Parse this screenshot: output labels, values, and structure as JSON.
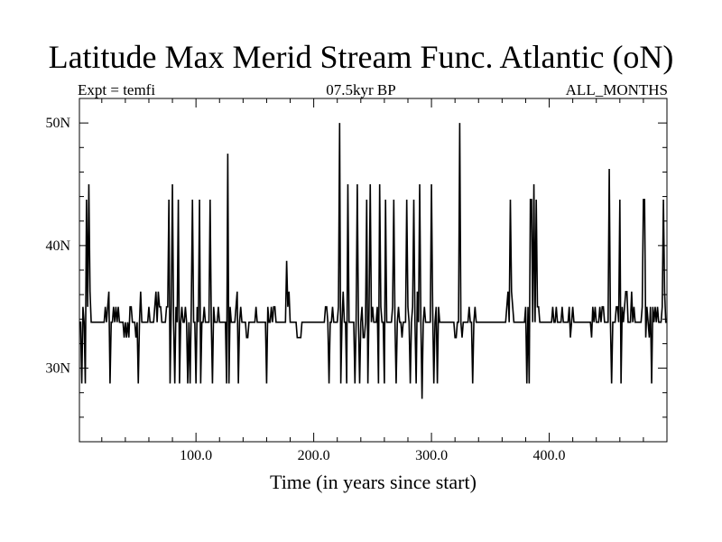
{
  "chart_data": {
    "type": "line",
    "title": "Latitude Max Merid Stream Func. Atlantic (oN)",
    "subtitle_left": "Expt = temfi",
    "subtitle_center": "07.5kyr BP",
    "subtitle_right": "ALL_MONTHS",
    "xlabel": "Time (in years since start)",
    "ylabel": "",
    "xlim": [
      1,
      500
    ],
    "ylim": [
      24,
      52
    ],
    "x_ticks": [
      100,
      200,
      300,
      400
    ],
    "x_tick_labels": [
      "100.0",
      "200.0",
      "300.0",
      "400.0"
    ],
    "y_ticks": [
      30,
      40,
      50
    ],
    "y_tick_labels": [
      "30N",
      "40N",
      "50N"
    ],
    "baseline": 33.75,
    "grid": false,
    "legend": "none",
    "series": [
      {
        "color": "#000000",
        "x": [
          1,
          2,
          3,
          4,
          5,
          6,
          7,
          8,
          9,
          10,
          11,
          12,
          13,
          14,
          15,
          16,
          17,
          18,
          19,
          20,
          21,
          22,
          23,
          24,
          25,
          26,
          27,
          28,
          29,
          30,
          31,
          32,
          33,
          34,
          35,
          36,
          37,
          38,
          39,
          40,
          41,
          42,
          43,
          44,
          45,
          46,
          47,
          48,
          49,
          50,
          51,
          52,
          53,
          54,
          55,
          56,
          57,
          58,
          59,
          60,
          61,
          62,
          63,
          64,
          65,
          66,
          67,
          68,
          69,
          70,
          71,
          72,
          73,
          74,
          75,
          76,
          77,
          78,
          79,
          80,
          81,
          82,
          83,
          84,
          85,
          86,
          87,
          88,
          89,
          90,
          91,
          92,
          93,
          94,
          95,
          96,
          97,
          98,
          99,
          100,
          101,
          102,
          103,
          104,
          105,
          106,
          107,
          108,
          109,
          110,
          111,
          112,
          113,
          114,
          115,
          116,
          117,
          118,
          119,
          120,
          121,
          122,
          123,
          124,
          125,
          126,
          127,
          128,
          129,
          130,
          131,
          132,
          133,
          134,
          135,
          136,
          137,
          138,
          139,
          140,
          141,
          142,
          143,
          144,
          145,
          146,
          147,
          148,
          149,
          150,
          151,
          152,
          153,
          154,
          155,
          156,
          157,
          158,
          159,
          160,
          161,
          162,
          163,
          164,
          165,
          166,
          167,
          168,
          169,
          170,
          171,
          172,
          173,
          174,
          175,
          176,
          177,
          178,
          179,
          180,
          181,
          182,
          183,
          184,
          185,
          186,
          187,
          188,
          189,
          190,
          191,
          192,
          193,
          194,
          195,
          196,
          197,
          198,
          199,
          200,
          201,
          202,
          203,
          204,
          205,
          206,
          207,
          208,
          209,
          210,
          211,
          212,
          213,
          214,
          215,
          216,
          217,
          218,
          219,
          220,
          221,
          222,
          223,
          224,
          225,
          226,
          227,
          228,
          229,
          230,
          231,
          232,
          233,
          234,
          235,
          236,
          237,
          238,
          239,
          240,
          241,
          242,
          243,
          244,
          245,
          246,
          247,
          248,
          249,
          250,
          251,
          252,
          253,
          254,
          255,
          256,
          257,
          258,
          259,
          260,
          261,
          262,
          263,
          264,
          265,
          266,
          267,
          268,
          269,
          270,
          271,
          272,
          273,
          274,
          275,
          276,
          277,
          278,
          279,
          280,
          281,
          282,
          283,
          284,
          285,
          286,
          287,
          288,
          289,
          290,
          291,
          292,
          293,
          294,
          295,
          296,
          297,
          298,
          299,
          300,
          301,
          302,
          303,
          304,
          305,
          306,
          307,
          308,
          309,
          310,
          311,
          312,
          313,
          314,
          315,
          316,
          317,
          318,
          319,
          320,
          321,
          322,
          323,
          324,
          325,
          326,
          327,
          328,
          329,
          330,
          331,
          332,
          333,
          334,
          335,
          336,
          337,
          338,
          339,
          340,
          341,
          342,
          343,
          344,
          345,
          346,
          347,
          348,
          349,
          350,
          351,
          352,
          353,
          354,
          355,
          356,
          357,
          358,
          359,
          360,
          361,
          362,
          363,
          364,
          365,
          366,
          367,
          368,
          369,
          370,
          371,
          372,
          373,
          374,
          375,
          376,
          377,
          378,
          379,
          380,
          381,
          382,
          383,
          384,
          385,
          386,
          387,
          388,
          389,
          390,
          391,
          392,
          393,
          394,
          395,
          396,
          397,
          398,
          399,
          400,
          401,
          402,
          403,
          404,
          405,
          406,
          407,
          408,
          409,
          410,
          411,
          412,
          413,
          414,
          415,
          416,
          417,
          418,
          419,
          420,
          421,
          422,
          423,
          424,
          425,
          426,
          427,
          428,
          429,
          430,
          431,
          432,
          433,
          434,
          435,
          436,
          437,
          438,
          439,
          440,
          441,
          442,
          443,
          444,
          445,
          446,
          447,
          448,
          449,
          450,
          451,
          452,
          453,
          454,
          455,
          456,
          457,
          458,
          459,
          460,
          461,
          462,
          463,
          464,
          465,
          466,
          467,
          468,
          469,
          470,
          471,
          472,
          473,
          474,
          475,
          476,
          477,
          478,
          479,
          480,
          481,
          482,
          483,
          484,
          485,
          486,
          487,
          488,
          489,
          490,
          491,
          492,
          493,
          494,
          495,
          496,
          497,
          498,
          499,
          500
        ],
        "y": [
          33.75,
          33.75,
          28.75,
          35.0,
          33.75,
          28.75,
          43.75,
          35.0,
          45.0,
          36.25,
          33.75,
          33.75,
          33.75,
          33.75,
          33.75,
          33.75,
          33.75,
          33.75,
          33.75,
          33.75,
          33.75,
          33.75,
          35.0,
          33.75,
          35.0,
          36.25,
          28.75,
          33.75,
          33.75,
          35.0,
          33.75,
          35.0,
          33.75,
          35.0,
          33.75,
          33.75,
          33.75,
          33.75,
          32.5,
          33.75,
          32.5,
          33.75,
          32.5,
          35.0,
          35.0,
          33.75,
          33.75,
          33.75,
          32.5,
          33.75,
          28.75,
          33.75,
          36.25,
          33.75,
          33.75,
          33.75,
          33.75,
          33.75,
          33.75,
          35.0,
          33.75,
          33.75,
          33.75,
          33.75,
          35.0,
          36.25,
          33.75,
          36.25,
          35.0,
          35.0,
          33.75,
          33.75,
          33.75,
          33.75,
          35.0,
          35.0,
          43.75,
          28.75,
          35.0,
          45.0,
          33.75,
          28.75,
          35.0,
          33.75,
          43.75,
          28.75,
          33.75,
          35.0,
          33.75,
          33.75,
          35.0,
          33.75,
          28.75,
          33.75,
          28.75,
          35.0,
          43.75,
          33.75,
          33.75,
          28.75,
          35.0,
          33.75,
          43.75,
          28.75,
          33.75,
          33.75,
          35.0,
          33.75,
          33.75,
          33.75,
          33.75,
          43.75,
          33.75,
          28.75,
          35.0,
          33.75,
          33.75,
          33.75,
          35.0,
          33.75,
          33.75,
          33.75,
          33.75,
          33.75,
          33.75,
          28.75,
          47.5,
          28.75,
          35.0,
          33.75,
          33.75,
          33.75,
          33.75,
          35.0,
          36.25,
          28.75,
          33.75,
          35.0,
          33.75,
          33.75,
          33.75,
          33.75,
          32.5,
          32.5,
          33.75,
          33.75,
          33.75,
          33.75,
          33.75,
          33.75,
          35.0,
          33.75,
          33.75,
          33.75,
          33.75,
          33.75,
          33.75,
          33.75,
          33.75,
          28.75,
          35.0,
          33.75,
          33.75,
          35.0,
          33.75,
          35.0,
          35.0,
          33.75,
          33.75,
          33.75,
          33.75,
          33.75,
          33.75,
          33.75,
          33.75,
          33.75,
          38.75,
          35.0,
          36.25,
          33.75,
          33.75,
          33.75,
          33.75,
          33.75,
          33.75,
          32.5,
          32.5,
          32.5,
          32.5,
          33.75,
          33.75,
          33.75,
          33.75,
          33.75,
          33.75,
          33.75,
          33.75,
          33.75,
          33.75,
          33.75,
          33.75,
          33.75,
          33.75,
          33.75,
          33.75,
          33.75,
          33.75,
          33.75,
          33.75,
          35.0,
          35.0,
          33.75,
          28.75,
          33.75,
          33.75,
          35.0,
          33.75,
          33.75,
          33.75,
          33.75,
          35.0,
          50.0,
          28.75,
          33.75,
          36.25,
          33.75,
          33.75,
          28.75,
          45.0,
          33.75,
          33.75,
          33.75,
          33.75,
          33.75,
          28.75,
          33.75,
          45.0,
          33.75,
          28.75,
          33.75,
          35.0,
          32.5,
          32.5,
          33.75,
          43.75,
          28.75,
          35.0,
          45.0,
          33.75,
          35.0,
          33.75,
          33.75,
          33.75,
          35.0,
          28.75,
          45.0,
          35.0,
          33.75,
          33.75,
          28.75,
          43.75,
          33.75,
          33.75,
          33.75,
          33.75,
          33.75,
          35.0,
          43.75,
          33.75,
          28.75,
          33.75,
          35.0,
          33.75,
          33.75,
          32.5,
          33.75,
          33.75,
          33.75,
          43.75,
          35.0,
          33.75,
          28.75,
          33.75,
          35.0,
          43.75,
          33.75,
          28.75,
          36.25,
          33.75,
          45.0,
          33.75,
          27.5,
          33.75,
          35.0,
          33.75,
          33.75,
          33.75,
          33.75,
          33.75,
          45.0,
          35.0,
          28.75,
          33.75,
          35.0,
          28.75,
          35.0,
          33.75,
          33.75,
          33.75,
          33.75,
          33.75,
          33.75,
          33.75,
          33.75,
          33.75,
          33.75,
          33.75,
          33.75,
          33.75,
          32.5,
          32.5,
          33.75,
          33.75,
          50.0,
          33.75,
          32.5,
          33.75,
          33.75,
          33.75,
          33.75,
          33.75,
          35.0,
          33.75,
          33.75,
          28.75,
          33.75,
          35.0,
          33.75,
          33.75,
          33.75,
          33.75,
          33.75,
          33.75,
          33.75,
          33.75,
          33.75,
          33.75,
          33.75,
          33.75,
          33.75,
          33.75,
          33.75,
          33.75,
          33.75,
          33.75,
          33.75,
          33.75,
          33.75,
          33.75,
          33.75,
          33.75,
          33.75,
          33.75,
          35.0,
          36.25,
          33.75,
          43.75,
          36.25,
          35.0,
          33.75,
          33.75,
          33.75,
          33.75,
          33.75,
          33.75,
          33.75,
          33.75,
          33.75,
          33.75,
          35.0,
          28.75,
          35.0,
          28.75,
          43.75,
          43.75,
          33.75,
          45.0,
          33.75,
          43.75,
          35.0,
          35.0,
          33.75,
          33.75,
          33.75,
          33.75,
          33.75,
          33.75,
          33.75,
          33.75,
          33.75,
          33.75,
          33.75,
          35.0,
          33.75,
          33.75,
          35.0,
          33.75,
          33.75,
          33.75,
          33.75,
          35.0,
          33.75,
          33.75,
          33.75,
          33.75,
          33.75,
          35.0,
          32.5,
          33.75,
          35.0,
          33.75,
          33.75,
          33.75,
          33.75,
          33.75,
          33.75,
          33.75,
          33.75,
          33.75,
          33.75,
          33.75,
          33.75,
          33.75,
          33.75,
          33.75,
          32.5,
          35.0,
          33.75,
          35.0,
          33.75,
          33.75,
          33.75,
          35.0,
          33.75,
          35.0,
          35.0,
          33.75,
          33.75,
          33.75,
          33.75,
          46.25,
          33.75,
          28.75,
          33.75,
          33.75,
          33.75,
          35.0,
          35.0,
          33.75,
          43.75,
          28.75,
          35.0,
          33.75,
          35.0,
          36.25,
          36.25,
          33.75,
          33.75,
          33.75,
          36.25,
          33.75,
          35.0,
          33.75,
          33.75,
          33.75,
          33.75,
          33.75,
          33.75,
          35.0,
          43.75,
          43.75,
          32.5,
          35.0,
          33.75,
          32.5,
          35.0,
          28.75,
          35.0,
          33.75,
          35.0,
          33.75,
          35.0,
          33.75,
          33.75,
          33.75,
          35.0,
          43.75,
          36.25,
          33.75,
          33.75
        ]
      }
    ]
  }
}
